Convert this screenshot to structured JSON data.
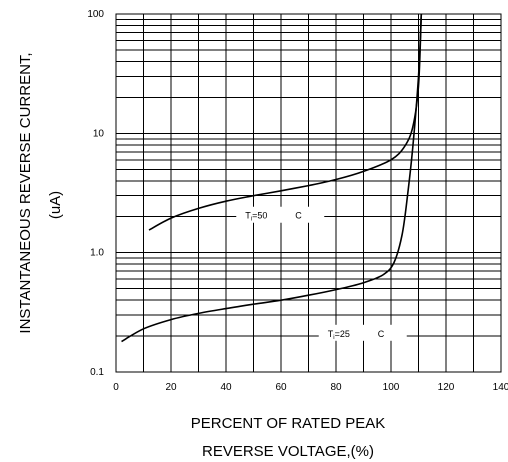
{
  "chart_data": {
    "type": "line",
    "title": "",
    "xlabel_lines": [
      "PERCENT OF RATED PEAK",
      "REVERSE VOLTAGE,(%)"
    ],
    "ylabel": "INSTANTANEOUS REVERSE CURRENT,",
    "yunit": "(uA)",
    "xlim": [
      0,
      140
    ],
    "ylim": [
      0.1,
      100
    ],
    "yscale": "log",
    "grid": true,
    "x_ticks": [
      {
        "value": 0,
        "label": "0"
      },
      {
        "value": 20,
        "label": "20"
      },
      {
        "value": 40,
        "label": "40"
      },
      {
        "value": 60,
        "label": "60"
      },
      {
        "value": 80,
        "label": "80"
      },
      {
        "value": 100,
        "label": "100"
      },
      {
        "value": 120,
        "label": "120"
      },
      {
        "value": 140,
        "label": "140"
      }
    ],
    "y_ticks": [
      {
        "value": 0.1,
        "label": "0.1"
      },
      {
        "value": 1,
        "label": "1.0"
      },
      {
        "value": 10,
        "label": "10"
      },
      {
        "value": 100,
        "label": "100"
      }
    ],
    "series": [
      {
        "name": "T=50 C",
        "label_main": "T",
        "label_sub": "i",
        "label_value": "=50",
        "label_unit": "C",
        "label_at": {
          "x": 47,
          "y": 2.0
        },
        "x": [
          12,
          20,
          30,
          40,
          50,
          60,
          70,
          80,
          90,
          100,
          105,
          108,
          110,
          111
        ],
        "y": [
          1.55,
          1.95,
          2.35,
          2.7,
          3.0,
          3.3,
          3.65,
          4.1,
          4.8,
          6.0,
          7.8,
          11.5,
          25,
          100
        ]
      },
      {
        "name": "T=25 C",
        "label_main": "T",
        "label_sub": "i",
        "label_value": "=25",
        "label_unit": "C",
        "label_at": {
          "x": 77,
          "y": 0.205
        },
        "x": [
          2,
          10,
          20,
          30,
          40,
          50,
          60,
          70,
          80,
          90,
          97,
          101,
          104,
          106,
          108,
          110,
          111
        ],
        "y": [
          0.18,
          0.23,
          0.275,
          0.31,
          0.34,
          0.37,
          0.4,
          0.44,
          0.49,
          0.56,
          0.65,
          0.82,
          1.4,
          3.0,
          8.0,
          30,
          100
        ]
      }
    ]
  }
}
